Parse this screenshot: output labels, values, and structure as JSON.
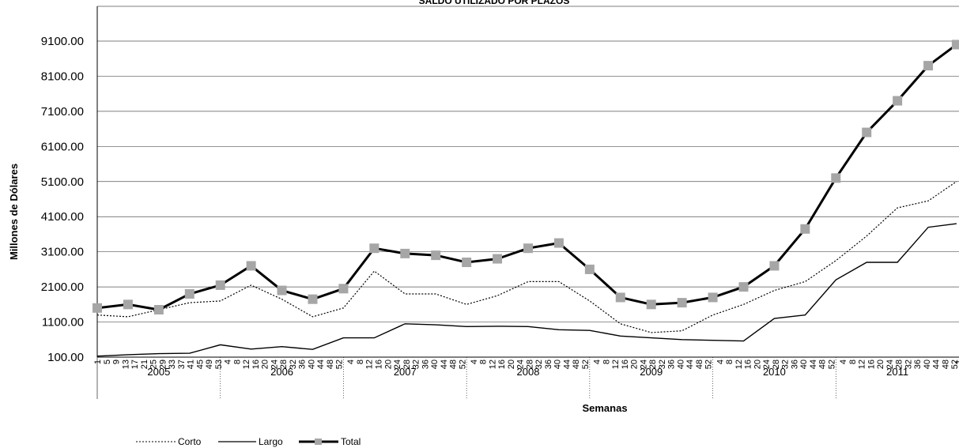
{
  "chart_data": {
    "type": "line",
    "title": "SALDO UTILIZADO POR PLAZOS",
    "xlabel": "Semanas",
    "ylabel": "Millones de Dólares",
    "ylim": [
      100,
      9100
    ],
    "y_ticks": [
      "9100.00",
      "8100.00",
      "7100.00",
      "6100.00",
      "5100.00",
      "4100.00",
      "3100.00",
      "2100.00",
      "1100.00",
      "100.00"
    ],
    "grid": "horizontal",
    "legend_position": "bottom-left",
    "years": [
      "2005",
      "2006",
      "2007",
      "2008",
      "2009",
      "2010",
      "2011"
    ],
    "week_tick_labels": [
      [
        "1",
        "5",
        "9",
        "13",
        "17",
        "21",
        "25",
        "29",
        "33",
        "37",
        "41",
        "45",
        "49",
        "53"
      ],
      [
        "4",
        "8",
        "12",
        "16",
        "20",
        "24",
        "28",
        "32",
        "36",
        "40",
        "44",
        "48",
        "52"
      ],
      [
        "4",
        "8",
        "12",
        "16",
        "20",
        "24",
        "28",
        "32",
        "36",
        "40",
        "44",
        "48",
        "52"
      ],
      [
        "4",
        "8",
        "12",
        "16",
        "20",
        "24",
        "28",
        "32",
        "36",
        "40",
        "44",
        "48",
        "52"
      ],
      [
        "4",
        "8",
        "12",
        "16",
        "20",
        "24",
        "28",
        "32",
        "36",
        "40",
        "44",
        "48",
        "52"
      ],
      [
        "4",
        "8",
        "12",
        "16",
        "20",
        "24",
        "28",
        "32",
        "36",
        "40",
        "44",
        "48",
        "52"
      ],
      [
        "4",
        "8",
        "12",
        "16",
        "20",
        "24",
        "28",
        "32",
        "36",
        "40",
        "44",
        "48",
        "52",
        "1"
      ]
    ],
    "x": [
      2005.0,
      2005.25,
      2005.5,
      2005.75,
      2006.0,
      2006.25,
      2006.5,
      2006.75,
      2007.0,
      2007.25,
      2007.5,
      2007.75,
      2008.0,
      2008.25,
      2008.5,
      2008.75,
      2009.0,
      2009.25,
      2009.5,
      2009.75,
      2010.0,
      2010.25,
      2010.5,
      2010.75,
      2011.0,
      2011.25,
      2011.5,
      2011.75,
      2011.98
    ],
    "series": [
      {
        "name": "Corto",
        "style": "dotted",
        "color": "#000000",
        "values": [
          1300,
          1250,
          1450,
          1650,
          1700,
          2150,
          1750,
          1250,
          1500,
          2550,
          1900,
          1900,
          1600,
          1850,
          2250,
          2250,
          1700,
          1050,
          800,
          850,
          1300,
          1600,
          2000,
          2250,
          2850,
          3550,
          4350,
          4550,
          5100
        ]
      },
      {
        "name": "Largo",
        "style": "solid",
        "color": "#000000",
        "values": [
          130,
          170,
          200,
          210,
          450,
          330,
          400,
          320,
          650,
          650,
          1050,
          1020,
          970,
          980,
          970,
          880,
          860,
          700,
          650,
          600,
          580,
          560,
          1200,
          1300,
          2300,
          2800,
          2800,
          3800,
          3900
        ]
      },
      {
        "name": "Total",
        "style": "thick-marker",
        "color": "#000000",
        "marker_color": "#a6a6a6",
        "values": [
          1500,
          1600,
          1450,
          1900,
          2150,
          2700,
          2000,
          1750,
          2050,
          3200,
          3050,
          3000,
          2800,
          2900,
          3200,
          3350,
          2600,
          1800,
          1600,
          1650,
          1800,
          2100,
          2700,
          3750,
          5200,
          6500,
          7400,
          8400,
          9000
        ]
      }
    ]
  }
}
